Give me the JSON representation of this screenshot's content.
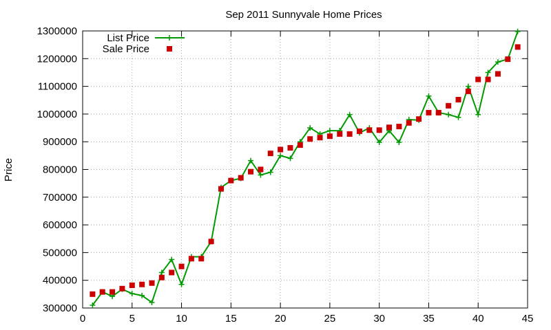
{
  "chart_data": {
    "type": "line",
    "title": "Sep 2011 Sunnyvale Home Prices",
    "xlabel": "",
    "ylabel": "Price",
    "xlim": [
      0,
      45
    ],
    "ylim": [
      300000,
      1300000
    ],
    "xticks": [
      0,
      5,
      10,
      15,
      20,
      25,
      30,
      35,
      40,
      45
    ],
    "yticks": [
      300000,
      400000,
      500000,
      600000,
      700000,
      800000,
      900000,
      1000000,
      1100000,
      1200000,
      1300000
    ],
    "grid": true,
    "legend_position": "top-left",
    "x": [
      1,
      2,
      3,
      4,
      5,
      6,
      7,
      8,
      9,
      10,
      11,
      12,
      13,
      14,
      15,
      16,
      17,
      18,
      19,
      20,
      21,
      22,
      23,
      24,
      25,
      26,
      27,
      28,
      29,
      30,
      31,
      32,
      33,
      34,
      35,
      36,
      37,
      38,
      39,
      40,
      41,
      42,
      43,
      44
    ],
    "series": [
      {
        "name": "List Price",
        "style": "line-with-plus-markers",
        "color": "#009900",
        "values": [
          310000,
          358000,
          342000,
          368000,
          352000,
          345000,
          320000,
          428000,
          475000,
          385000,
          485000,
          485000,
          540000,
          735000,
          760000,
          768000,
          832000,
          780000,
          790000,
          850000,
          840000,
          900000,
          950000,
          928000,
          940000,
          940000,
          998000,
          932000,
          950000,
          898000,
          940000,
          898000,
          980000,
          978000,
          1065000,
          1005000,
          998000,
          988000,
          1100000,
          998000,
          1150000,
          1188000,
          1198000,
          1298000
        ]
      },
      {
        "name": "Sale Price",
        "style": "square-markers",
        "color": "#cc0000",
        "values": [
          350000,
          358000,
          358000,
          370000,
          382000,
          385000,
          390000,
          410000,
          428000,
          450000,
          478000,
          478000,
          540000,
          730000,
          760000,
          770000,
          792000,
          800000,
          858000,
          872000,
          878000,
          888000,
          910000,
          915000,
          920000,
          928000,
          928000,
          938000,
          942000,
          942000,
          952000,
          955000,
          968000,
          982000,
          1005000,
          1005000,
          1030000,
          1052000,
          1082000,
          1125000,
          1125000,
          1145000,
          1198000,
          1242000
        ]
      }
    ]
  }
}
